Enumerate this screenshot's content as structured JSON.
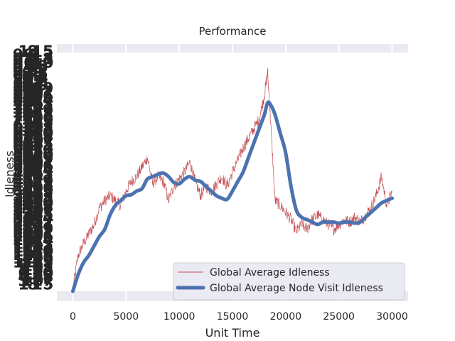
{
  "chart_data": {
    "type": "line",
    "title": "Performance",
    "xlabel": "Unit Time",
    "ylabel": "Idleness",
    "xlim": [
      -1500,
      31500
    ],
    "ylim": [
      0,
      100
    ],
    "x_ticks": [
      0,
      5000,
      10000,
      15000,
      20000,
      25000,
      30000
    ],
    "x_tick_labels": [
      "0",
      "5000",
      "10000",
      "15000",
      "20000",
      "25000",
      "30000"
    ],
    "grid": true,
    "legend_position": "lower-right",
    "series": [
      {
        "name": "Global Average Idleness",
        "color": "#c44e52",
        "style": "thin-noisy",
        "x": [
          0,
          500,
          1000,
          1500,
          2000,
          2500,
          3000,
          3500,
          4000,
          4500,
          5000,
          5500,
          6000,
          6500,
          7000,
          7500,
          8000,
          8500,
          9000,
          9500,
          10000,
          10500,
          11000,
          11500,
          12000,
          12500,
          13000,
          13500,
          14000,
          14500,
          15000,
          15500,
          16000,
          16500,
          17000,
          17500,
          18000,
          18300,
          18600,
          19000,
          19500,
          20000,
          20500,
          21000,
          21500,
          22000,
          22500,
          23000,
          23500,
          24000,
          24500,
          25000,
          25500,
          26000,
          26500,
          27000,
          27500,
          28000,
          28500,
          29000,
          29500,
          30000
        ],
        "y": [
          1,
          15,
          20,
          24,
          28,
          35,
          38,
          40,
          38,
          36,
          42,
          46,
          48,
          52,
          56,
          45,
          48,
          46,
          38,
          44,
          47,
          50,
          54,
          46,
          40,
          44,
          42,
          45,
          48,
          44,
          50,
          55,
          60,
          64,
          68,
          72,
          82,
          92,
          70,
          38,
          36,
          33,
          30,
          25,
          28,
          26,
          30,
          32,
          30,
          28,
          26,
          28,
          30,
          29,
          31,
          29,
          32,
          35,
          40,
          48,
          36,
          42
        ]
      },
      {
        "name": "Global Average Node Visit Idleness",
        "color": "#4c72b0",
        "style": "thick-smooth",
        "x": [
          0,
          500,
          1000,
          1500,
          2000,
          2500,
          3000,
          3500,
          4000,
          4500,
          5000,
          5500,
          6000,
          6500,
          7000,
          7500,
          8000,
          8500,
          9000,
          9500,
          10000,
          10500,
          11000,
          11500,
          12000,
          12500,
          13000,
          13500,
          14000,
          14500,
          15000,
          15500,
          16000,
          16500,
          17000,
          17500,
          18000,
          18300,
          18600,
          19000,
          19500,
          20000,
          20500,
          21000,
          21500,
          22000,
          22500,
          23000,
          23500,
          24000,
          24500,
          25000,
          25500,
          26000,
          26500,
          27000,
          27500,
          28000,
          28500,
          29000,
          29500,
          30000
        ],
        "y": [
          0,
          7,
          12,
          15,
          19,
          23,
          26,
          32,
          36,
          38,
          40,
          40.5,
          42,
          43,
          47,
          48,
          49,
          49.5,
          48,
          45.5,
          45,
          47,
          48,
          46.5,
          46,
          44,
          42,
          40,
          39,
          38.5,
          42,
          46,
          50,
          56,
          62,
          68,
          74,
          79,
          78,
          74,
          66,
          58,
          44,
          34,
          31,
          30,
          29,
          28,
          29,
          29,
          29,
          28.5,
          29,
          29,
          28.5,
          29,
          31,
          33,
          35,
          37,
          38,
          39
        ]
      }
    ]
  }
}
